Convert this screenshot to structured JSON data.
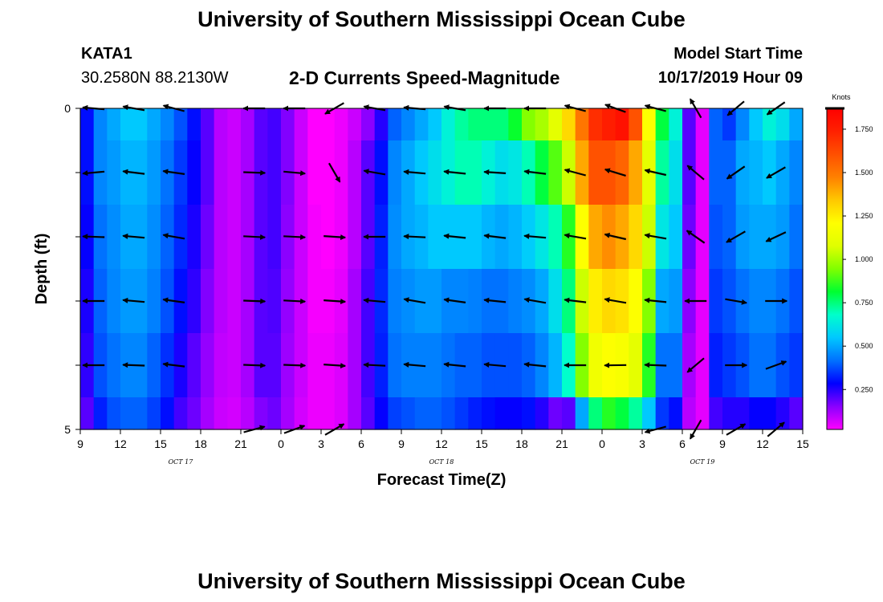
{
  "title_top": "University of Southern Mississippi Ocean Cube",
  "title_bottom": "University of Southern Mississippi Ocean Cube",
  "station": {
    "name": "KATA1",
    "coords": "30.2580N 88.2130W"
  },
  "subtitle": "2-D Currents Speed-Magnitude",
  "model_start": {
    "label": "Model Start Time",
    "value": "10/17/2019 Hour 09"
  },
  "chart_data": {
    "type": "heatmap",
    "title": "2-D Currents Speed-Magnitude",
    "xlabel": "Forecast Time(Z)",
    "ylabel": "Depth (ft)",
    "x_unit": "hours since Model Start Time (10/17/2019 09Z)",
    "x_range": [
      0,
      54
    ],
    "x_ticks": [
      {
        "h": 0,
        "label": "9"
      },
      {
        "h": 3,
        "label": "12"
      },
      {
        "h": 6,
        "label": "15"
      },
      {
        "h": 9,
        "label": "18"
      },
      {
        "h": 12,
        "label": "21"
      },
      {
        "h": 15,
        "label": "0"
      },
      {
        "h": 18,
        "label": "3"
      },
      {
        "h": 21,
        "label": "6"
      },
      {
        "h": 24,
        "label": "9"
      },
      {
        "h": 27,
        "label": "12"
      },
      {
        "h": 30,
        "label": "15"
      },
      {
        "h": 33,
        "label": "18"
      },
      {
        "h": 36,
        "label": "21"
      },
      {
        "h": 39,
        "label": "0"
      },
      {
        "h": 42,
        "label": "3"
      },
      {
        "h": 45,
        "label": "6"
      },
      {
        "h": 48,
        "label": "9"
      },
      {
        "h": 51,
        "label": "12"
      },
      {
        "h": 54,
        "label": "15"
      }
    ],
    "date_labels": [
      {
        "h": 7.5,
        "label": "OCT 17"
      },
      {
        "h": 27,
        "label": "OCT 18"
      },
      {
        "h": 46.5,
        "label": "OCT 19"
      }
    ],
    "y_range": [
      0,
      5
    ],
    "y_ticks": [
      {
        "v": 0,
        "label": "0"
      },
      {
        "v": 1,
        "label": ""
      },
      {
        "v": 2,
        "label": ""
      },
      {
        "v": 3,
        "label": ""
      },
      {
        "v": 4,
        "label": ""
      },
      {
        "v": 5,
        "label": "5"
      }
    ],
    "colorbar": {
      "unit": "Knots",
      "range": [
        0.02,
        1.87
      ],
      "ticks": [
        "0.250",
        "0.500",
        "0.750",
        "1.000",
        "1.250",
        "1.500",
        "1.750"
      ],
      "tick_values": [
        0.25,
        0.5,
        0.75,
        1.0,
        1.25,
        1.5,
        1.75
      ],
      "colors": [
        "#ff00ff",
        "#8a00ff",
        "#0000ff",
        "#0070ff",
        "#00c8ff",
        "#00ffcc",
        "#00ff30",
        "#80ff00",
        "#e0ff00",
        "#ffff00",
        "#ffc800",
        "#ff8000",
        "#ff5000",
        "#ff2000",
        "#ff0000"
      ]
    },
    "depth_bins": [
      0.25,
      1,
      2,
      3,
      4,
      4.75
    ],
    "time_hours": [
      0,
      1,
      2,
      3,
      4,
      5,
      6,
      7,
      8,
      9,
      10,
      11,
      12,
      13,
      14,
      15,
      16,
      17,
      18,
      19,
      20,
      21,
      22,
      23,
      24,
      25,
      26,
      27,
      28,
      29,
      30,
      31,
      32,
      33,
      34,
      35,
      36,
      37,
      38,
      39,
      40,
      41,
      42,
      43,
      44,
      45,
      46,
      47,
      48,
      49,
      50,
      51,
      52,
      53
    ],
    "speed_knots": [
      [
        0.3,
        0.45,
        0.5,
        0.55,
        0.55,
        0.5,
        0.45,
        0.38,
        0.3,
        0.2,
        0.1,
        0.08,
        0.12,
        0.2,
        0.22,
        0.16,
        0.08,
        0.02,
        0.02,
        0.04,
        0.08,
        0.15,
        0.25,
        0.4,
        0.45,
        0.5,
        0.55,
        0.65,
        0.72,
        0.75,
        0.75,
        0.75,
        0.82,
        0.95,
        1.0,
        1.1,
        1.3,
        1.5,
        1.7,
        1.75,
        1.8,
        1.6,
        1.2,
        0.8,
        0.65,
        0.2,
        0.05,
        0.4,
        0.35,
        0.45,
        0.55,
        0.65,
        0.6,
        0.5
      ],
      [
        0.3,
        0.45,
        0.48,
        0.52,
        0.52,
        0.48,
        0.42,
        0.35,
        0.28,
        0.2,
        0.1,
        0.08,
        0.12,
        0.2,
        0.22,
        0.16,
        0.08,
        0.02,
        0.02,
        0.04,
        0.1,
        0.2,
        0.3,
        0.45,
        0.5,
        0.55,
        0.6,
        0.65,
        0.7,
        0.7,
        0.65,
        0.6,
        0.62,
        0.7,
        0.8,
        0.9,
        1.05,
        1.4,
        1.6,
        1.6,
        1.55,
        1.4,
        1.1,
        0.72,
        0.6,
        0.2,
        0.05,
        0.4,
        0.4,
        0.5,
        0.52,
        0.55,
        0.5,
        0.45
      ],
      [
        0.28,
        0.42,
        0.46,
        0.5,
        0.5,
        0.46,
        0.4,
        0.33,
        0.26,
        0.18,
        0.1,
        0.08,
        0.12,
        0.2,
        0.22,
        0.15,
        0.08,
        0.03,
        0.02,
        0.04,
        0.1,
        0.2,
        0.32,
        0.46,
        0.5,
        0.52,
        0.55,
        0.55,
        0.55,
        0.55,
        0.52,
        0.5,
        0.52,
        0.56,
        0.62,
        0.7,
        0.85,
        1.2,
        1.4,
        1.45,
        1.4,
        1.3,
        1.05,
        0.62,
        0.55,
        0.18,
        0.05,
        0.38,
        0.4,
        0.48,
        0.5,
        0.5,
        0.48,
        0.42
      ],
      [
        0.26,
        0.4,
        0.45,
        0.48,
        0.48,
        0.44,
        0.38,
        0.3,
        0.24,
        0.16,
        0.1,
        0.08,
        0.12,
        0.2,
        0.21,
        0.14,
        0.08,
        0.03,
        0.03,
        0.05,
        0.12,
        0.22,
        0.33,
        0.44,
        0.46,
        0.48,
        0.48,
        0.45,
        0.45,
        0.44,
        0.42,
        0.42,
        0.44,
        0.46,
        0.5,
        0.6,
        0.75,
        1.05,
        1.25,
        1.3,
        1.28,
        1.2,
        0.95,
        0.5,
        0.48,
        0.15,
        0.05,
        0.35,
        0.38,
        0.42,
        0.45,
        0.45,
        0.42,
        0.38
      ],
      [
        0.24,
        0.38,
        0.42,
        0.45,
        0.45,
        0.4,
        0.34,
        0.26,
        0.2,
        0.14,
        0.09,
        0.08,
        0.12,
        0.2,
        0.2,
        0.13,
        0.08,
        0.04,
        0.04,
        0.06,
        0.12,
        0.22,
        0.32,
        0.42,
        0.44,
        0.44,
        0.44,
        0.42,
        0.4,
        0.4,
        0.38,
        0.38,
        0.38,
        0.4,
        0.45,
        0.52,
        0.68,
        0.95,
        1.15,
        1.2,
        1.18,
        1.1,
        0.85,
        0.42,
        0.42,
        0.12,
        0.05,
        0.32,
        0.35,
        0.38,
        0.42,
        0.42,
        0.38,
        0.35
      ],
      [
        0.2,
        0.32,
        0.38,
        0.4,
        0.4,
        0.36,
        0.3,
        0.22,
        0.18,
        0.12,
        0.08,
        0.07,
        0.1,
        0.16,
        0.18,
        0.12,
        0.07,
        0.04,
        0.04,
        0.06,
        0.12,
        0.2,
        0.28,
        0.36,
        0.38,
        0.4,
        0.4,
        0.38,
        0.35,
        0.32,
        0.3,
        0.28,
        0.28,
        0.3,
        0.25,
        0.18,
        0.2,
        0.5,
        0.75,
        0.85,
        0.8,
        0.72,
        0.55,
        0.35,
        0.3,
        0.1,
        0.05,
        0.22,
        0.25,
        0.25,
        0.28,
        0.28,
        0.25,
        0.2
      ]
    ],
    "vector_times": [
      1,
      4,
      7,
      13,
      16,
      19,
      22,
      25,
      28,
      31,
      34,
      37,
      40,
      43,
      46,
      49,
      52
    ],
    "vector_depths": [
      0,
      1,
      2,
      3,
      4,
      5
    ],
    "vectors_deg": [
      [
        185,
        190,
        195,
        180,
        180,
        150,
        190,
        185,
        190,
        180,
        180,
        195,
        200,
        195,
        240,
        140,
        145
      ],
      [
        175,
        187,
        188,
        2,
        5,
        60,
        190,
        185,
        186,
        184,
        187,
        195,
        197,
        193,
        220,
        145,
        150
      ],
      [
        182,
        185,
        190,
        3,
        3,
        4,
        180,
        183,
        186,
        187,
        185,
        190,
        193,
        190,
        215,
        150,
        155
      ],
      [
        180,
        185,
        188,
        2,
        3,
        4,
        185,
        190,
        188,
        186,
        190,
        187,
        190,
        186,
        180,
        10,
        0
      ],
      [
        180,
        182,
        187,
        2,
        2,
        4,
        183,
        185,
        186,
        185,
        186,
        180,
        179,
        182,
        140,
        0,
        340
      ],
      [
        null,
        null,
        null,
        345,
        340,
        330,
        null,
        null,
        null,
        null,
        null,
        null,
        null,
        165,
        120,
        330,
        320
      ]
    ]
  }
}
